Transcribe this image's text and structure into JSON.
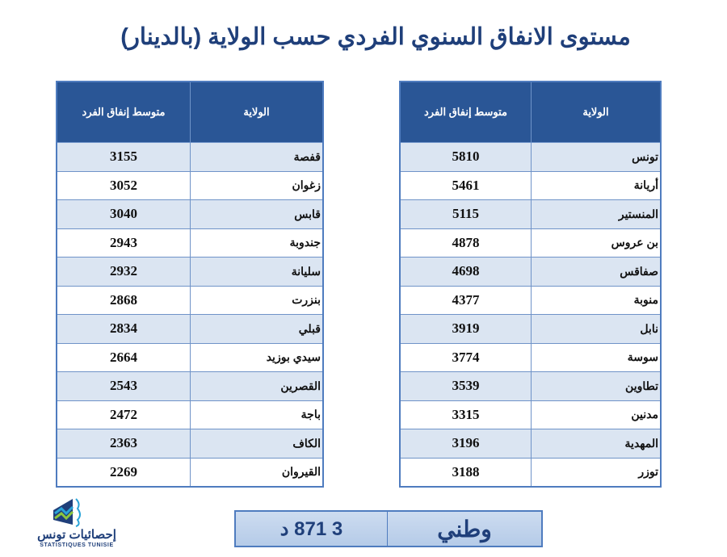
{
  "title": "مستوى الانفاق السنوي الفردي حسب الولاية (بالدينار)",
  "headers": {
    "governorate": "الولاية",
    "avg_spend_left": "متوسط  إنفاق الفرد",
    "avg_spend_right": "متوسط إنفاق الفرد"
  },
  "right_table": [
    {
      "name": "تونس",
      "value": "5810"
    },
    {
      "name": "أريانة",
      "value": "5461"
    },
    {
      "name": "المنستير",
      "value": "5115"
    },
    {
      "name": "بن عروس",
      "value": "4878"
    },
    {
      "name": "صفاقس",
      "value": "4698"
    },
    {
      "name": "منوبة",
      "value": "4377"
    },
    {
      "name": "نابل",
      "value": "3919"
    },
    {
      "name": "سوسة",
      "value": "3774"
    },
    {
      "name": "تطاوين",
      "value": "3539"
    },
    {
      "name": "مدنين",
      "value": "3315"
    },
    {
      "name": "المهدية",
      "value": "3196"
    },
    {
      "name": "توزر",
      "value": "3188"
    }
  ],
  "left_table": [
    {
      "name": "قفصة",
      "value": "3155"
    },
    {
      "name": "زغوان",
      "value": "3052"
    },
    {
      "name": "قابس",
      "value": "3040"
    },
    {
      "name": "جندوبة",
      "value": "2943"
    },
    {
      "name": "سليانة",
      "value": "2932"
    },
    {
      "name": "بنزرت",
      "value": "2868"
    },
    {
      "name": "قبلي",
      "value": "2834"
    },
    {
      "name": "سيدي بوزيد",
      "value": "2664"
    },
    {
      "name": "القصرين",
      "value": "2543"
    },
    {
      "name": "باجة",
      "value": "2472"
    },
    {
      "name": "الكاف",
      "value": "2363"
    },
    {
      "name": "القيروان",
      "value": "2269"
    }
  ],
  "national": {
    "label": "وطني",
    "value": "3 871 د"
  },
  "logo": {
    "text": "إحصائيات تونس",
    "subtext": "STATISTIQUES TUNISIE"
  }
}
